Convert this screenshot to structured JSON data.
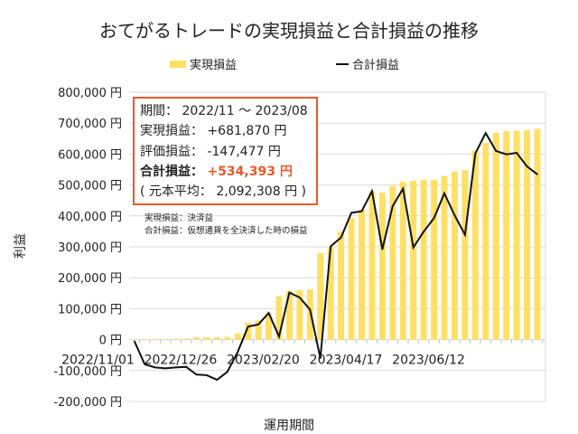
{
  "chart_data": {
    "type": "bar+line",
    "title": "おてがるトレードの実現損益と合計損益の推移",
    "xlabel": "運用期間",
    "ylabel": "利益",
    "ylim": [
      -200000,
      800000
    ],
    "yticks": [
      800000,
      700000,
      600000,
      500000,
      400000,
      300000,
      200000,
      100000,
      0,
      -100000,
      -200000
    ],
    "ytick_labels": [
      "800,000 円",
      "700,000 円",
      "600,000 円",
      "500,000 円",
      "400,000 円",
      "300,000 円",
      "200,000 円",
      "100,000 円",
      "0 円",
      "-100,000 円",
      "-200,000 円"
    ],
    "xtick_labels": [
      {
        "index": 0,
        "label": "2022/11/01"
      },
      {
        "index": 8,
        "label": "2022/12/26"
      },
      {
        "index": 16,
        "label": "2023/02/20"
      },
      {
        "index": 24,
        "label": "2023/04/17"
      },
      {
        "index": 32,
        "label": "2023/06/12"
      }
    ],
    "grid": true,
    "legend": "top",
    "series": [
      {
        "name": "実現損益",
        "type": "bar",
        "color": "#FFE066",
        "values": [
          1000,
          1500,
          2000,
          2500,
          3000,
          3500,
          7000,
          7500,
          8000,
          8500,
          20000,
          55000,
          62000,
          85000,
          140000,
          158000,
          160000,
          162000,
          280000,
          300000,
          350000,
          393000,
          420000,
          480000,
          476000,
          497000,
          511000,
          514000,
          517000,
          517000,
          529000,
          543000,
          548000,
          611000,
          636000,
          669000,
          674000,
          675000,
          677000,
          681870
        ]
      },
      {
        "name": "合計損益",
        "type": "line",
        "color": "#111111",
        "values": [
          -5000,
          -80000,
          -90000,
          -93000,
          -90000,
          -88000,
          -113000,
          -115000,
          -130000,
          -104000,
          -40000,
          42000,
          49000,
          86000,
          10000,
          152000,
          136000,
          97000,
          -60000,
          302000,
          330000,
          410000,
          415000,
          480000,
          292000,
          432000,
          488000,
          298000,
          349000,
          393000,
          473000,
          402000,
          339000,
          602000,
          668000,
          610000,
          599000,
          604000,
          560000,
          534393
        ]
      }
    ]
  },
  "infobox": {
    "period_label": "期間：",
    "period_value": "2022/11 ～ 2023/08",
    "realized_label": "実現損益：",
    "realized_value": "+681,870 円",
    "unrealized_label": "評価損益：",
    "unrealized_value": "-147,477 円",
    "total_label": "合計損益：",
    "total_value": "+534,393 円",
    "principal_open": "( 元本平均：",
    "principal_value": "2,092,308 円",
    "principal_close": ")",
    "accent_color": "#E8592B"
  },
  "notes": [
    "実現損益：決済益",
    "合計損益：仮想通貨を全決済した時の損益"
  ]
}
